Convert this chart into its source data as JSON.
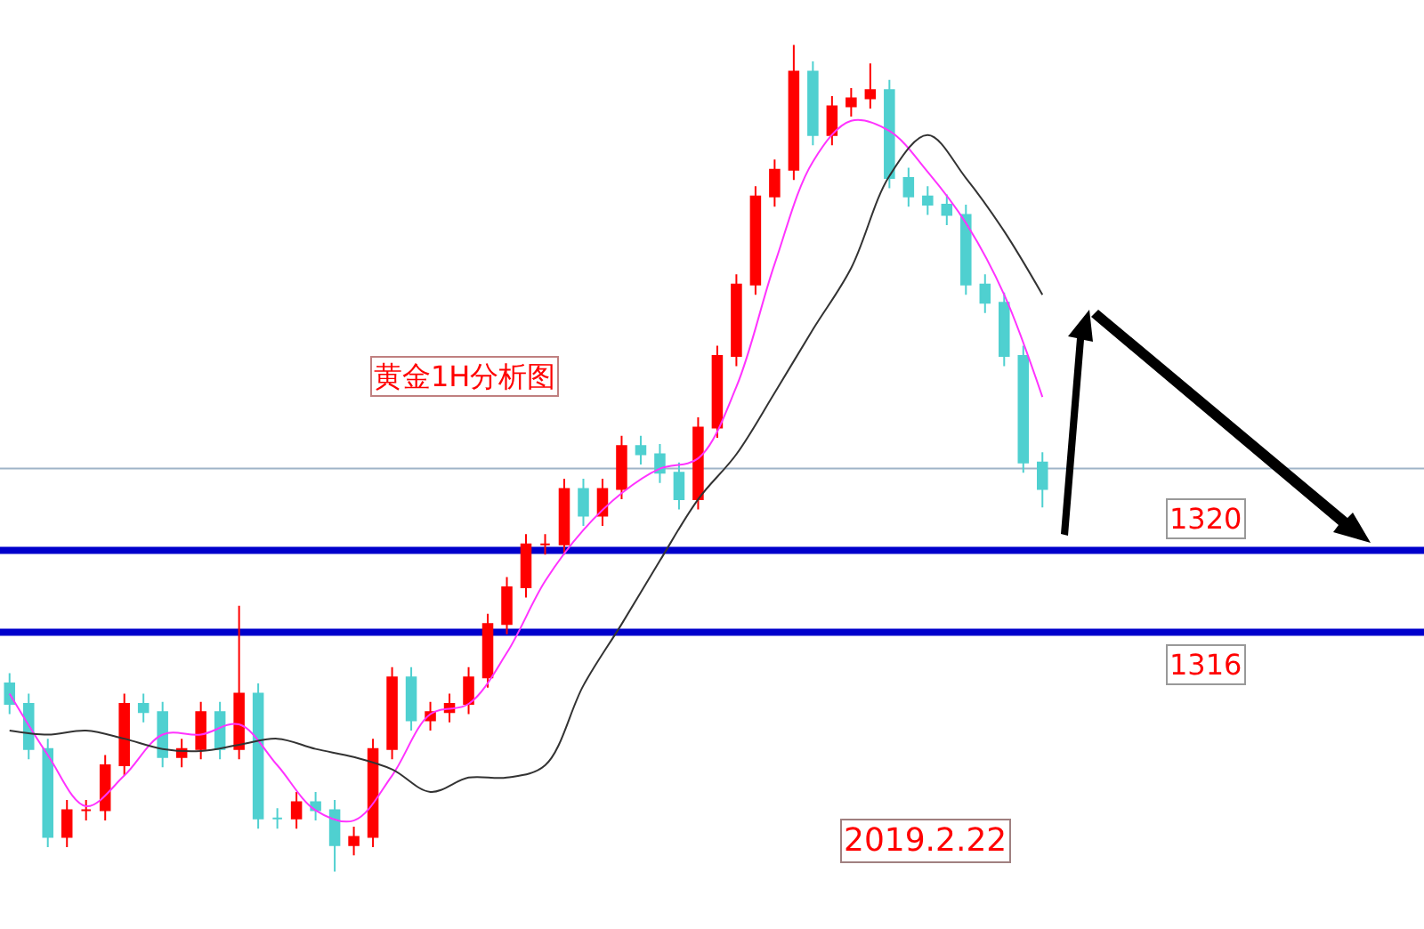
{
  "chart_data": {
    "type": "candlestick",
    "title": "黄金1H分析图",
    "categories": [
      null,
      null,
      null,
      null,
      null,
      null,
      null,
      null,
      null,
      null,
      null,
      null,
      null,
      null,
      null,
      null,
      null,
      null,
      null,
      null,
      null,
      null,
      null,
      null,
      null,
      null,
      null,
      null,
      null,
      null,
      null,
      null,
      null,
      null,
      null,
      null,
      null,
      null,
      null,
      null,
      null,
      null,
      null,
      null,
      null,
      null,
      null,
      null,
      null,
      null,
      null,
      null,
      null,
      null,
      null
    ],
    "ohlc": [
      [
        1313.5,
        1314.0,
        1312.0,
        1312.5
      ],
      [
        1312.5,
        1313.0,
        1309.8,
        1310.3
      ],
      [
        1310.3,
        1310.8,
        1305.5,
        1306.0
      ],
      [
        1306.0,
        1307.8,
        1305.5,
        1307.3
      ],
      [
        1307.3,
        1307.8,
        1306.8,
        1307.3
      ],
      [
        1307.3,
        1310.0,
        1306.8,
        1309.5
      ],
      [
        1309.5,
        1313.0,
        1309.0,
        1312.5
      ],
      [
        1312.5,
        1313.0,
        1311.6,
        1312.1
      ],
      [
        1312.1,
        1312.6,
        1309.4,
        1309.9
      ],
      [
        1309.9,
        1310.8,
        1309.4,
        1310.3
      ],
      [
        1310.3,
        1312.6,
        1309.8,
        1312.1
      ],
      [
        1312.1,
        1312.6,
        1309.8,
        1310.3
      ],
      [
        1310.3,
        1317.3,
        1309.8,
        1313.0
      ],
      [
        1313.0,
        1313.5,
        1306.4,
        1306.9
      ],
      [
        1306.9,
        1307.4,
        1306.4,
        1306.9
      ],
      [
        1306.9,
        1308.2,
        1306.4,
        1307.7
      ],
      [
        1307.7,
        1308.2,
        1306.8,
        1307.3
      ],
      [
        1307.3,
        1307.8,
        1304.3,
        1305.6
      ],
      [
        1305.6,
        1306.5,
        1305.1,
        1306.0
      ],
      [
        1306.0,
        1310.8,
        1305.5,
        1310.3
      ],
      [
        1310.3,
        1314.3,
        1309.8,
        1313.8
      ],
      [
        1313.8,
        1314.3,
        1311.2,
        1311.7
      ],
      [
        1311.7,
        1312.6,
        1311.2,
        1312.1
      ],
      [
        1312.1,
        1313.0,
        1311.6,
        1312.5
      ],
      [
        1312.5,
        1314.3,
        1312.0,
        1313.8
      ],
      [
        1313.8,
        1316.9,
        1313.3,
        1316.4
      ],
      [
        1316.4,
        1318.7,
        1315.9,
        1318.2
      ],
      [
        1318.2,
        1320.8,
        1317.7,
        1320.3
      ],
      [
        1320.3,
        1320.8,
        1319.8,
        1320.3
      ],
      [
        1320.3,
        1323.5,
        1319.8,
        1323.0
      ],
      [
        1323.0,
        1323.5,
        1321.2,
        1321.7
      ],
      [
        1321.7,
        1323.5,
        1321.2,
        1323.0
      ],
      [
        1323.0,
        1325.6,
        1322.5,
        1325.1
      ],
      [
        1325.1,
        1325.6,
        1324.2,
        1324.7
      ],
      [
        1324.7,
        1325.2,
        1323.3,
        1323.8
      ],
      [
        1323.8,
        1324.3,
        1322.0,
        1322.5
      ],
      [
        1322.5,
        1326.5,
        1322.0,
        1326.0
      ],
      [
        1326.0,
        1330.0,
        1325.5,
        1329.5
      ],
      [
        1329.5,
        1333.5,
        1329.0,
        1333.0
      ],
      [
        1333.0,
        1337.8,
        1332.5,
        1337.3
      ],
      [
        1337.3,
        1339.1,
        1336.8,
        1338.6
      ],
      [
        1338.6,
        1344.7,
        1338.1,
        1343.4
      ],
      [
        1343.4,
        1343.9,
        1339.8,
        1340.3
      ],
      [
        1340.3,
        1342.2,
        1339.8,
        1341.7
      ],
      [
        1341.7,
        1342.6,
        1341.2,
        1342.1
      ],
      [
        1342.1,
        1343.8,
        1341.6,
        1342.5
      ],
      [
        1342.5,
        1343.0,
        1337.7,
        1338.2
      ],
      [
        1338.2,
        1338.7,
        1336.8,
        1337.3
      ],
      [
        1337.3,
        1337.8,
        1336.4,
        1336.9
      ],
      [
        1336.9,
        1337.4,
        1335.9,
        1336.4
      ],
      [
        1336.4,
        1336.9,
        1332.5,
        1333.0
      ],
      [
        1333.0,
        1333.5,
        1331.6,
        1332.1
      ],
      [
        1332.1,
        1332.6,
        1329.0,
        1329.5
      ],
      [
        1329.5,
        1330.0,
        1323.8,
        1324.3
      ],
      [
        1324.3,
        1324.8,
        1322.1,
        1323.0
      ]
    ],
    "series": [
      {
        "type": "line",
        "color": "#ff33ff",
        "values": [
          1313.0,
          null,
          1310.0,
          null,
          1307.5,
          null,
          1309.0,
          null,
          1311.0,
          null,
          1311.0,
          null,
          1311.5,
          null,
          1309.5,
          null,
          1307.3,
          null,
          1306.8,
          null,
          1309.0,
          null,
          1312.0,
          null,
          1312.5,
          null,
          1315.0,
          null,
          1318.5,
          null,
          1321.0,
          null,
          1322.8,
          null,
          1324.0,
          null,
          1324.5,
          null,
          1328.0,
          null,
          1334.0,
          null,
          1339.0,
          null,
          1341.0,
          null,
          1340.5,
          null,
          1338.5,
          null,
          1336.0,
          null,
          1332.5,
          null,
          1327.5
        ]
      },
      {
        "type": "line",
        "color": "#333333",
        "values": [
          1311.2,
          null,
          1311.0,
          null,
          1311.2,
          null,
          1310.8,
          null,
          1310.3,
          null,
          1310.2,
          null,
          1310.5,
          null,
          1310.8,
          null,
          1310.3,
          null,
          1309.9,
          null,
          1309.3,
          null,
          1308.2,
          null,
          1308.9,
          null,
          1308.9,
          null,
          1309.5,
          null,
          1313.4,
          null,
          1316.4,
          null,
          1319.5,
          null,
          1322.5,
          null,
          1324.7,
          null,
          1327.7,
          null,
          1330.8,
          null,
          1333.8,
          null,
          1338.3,
          null,
          1340.3,
          null,
          1338.2,
          null,
          1335.6,
          null,
          1332.5
        ]
      }
    ],
    "ylim": [
      1301.5,
      1346.9
    ],
    "ref_lines": [
      {
        "axis": "y",
        "value": 1320,
        "label": "1320",
        "color": "#0000cc"
      },
      {
        "axis": "y",
        "value": 1316,
        "label": "1316",
        "color": "#0000cc"
      },
      {
        "axis": "y",
        "value": 1324,
        "color": "#9fb4c8"
      }
    ],
    "annotations": [
      "2019.2.22"
    ]
  }
}
